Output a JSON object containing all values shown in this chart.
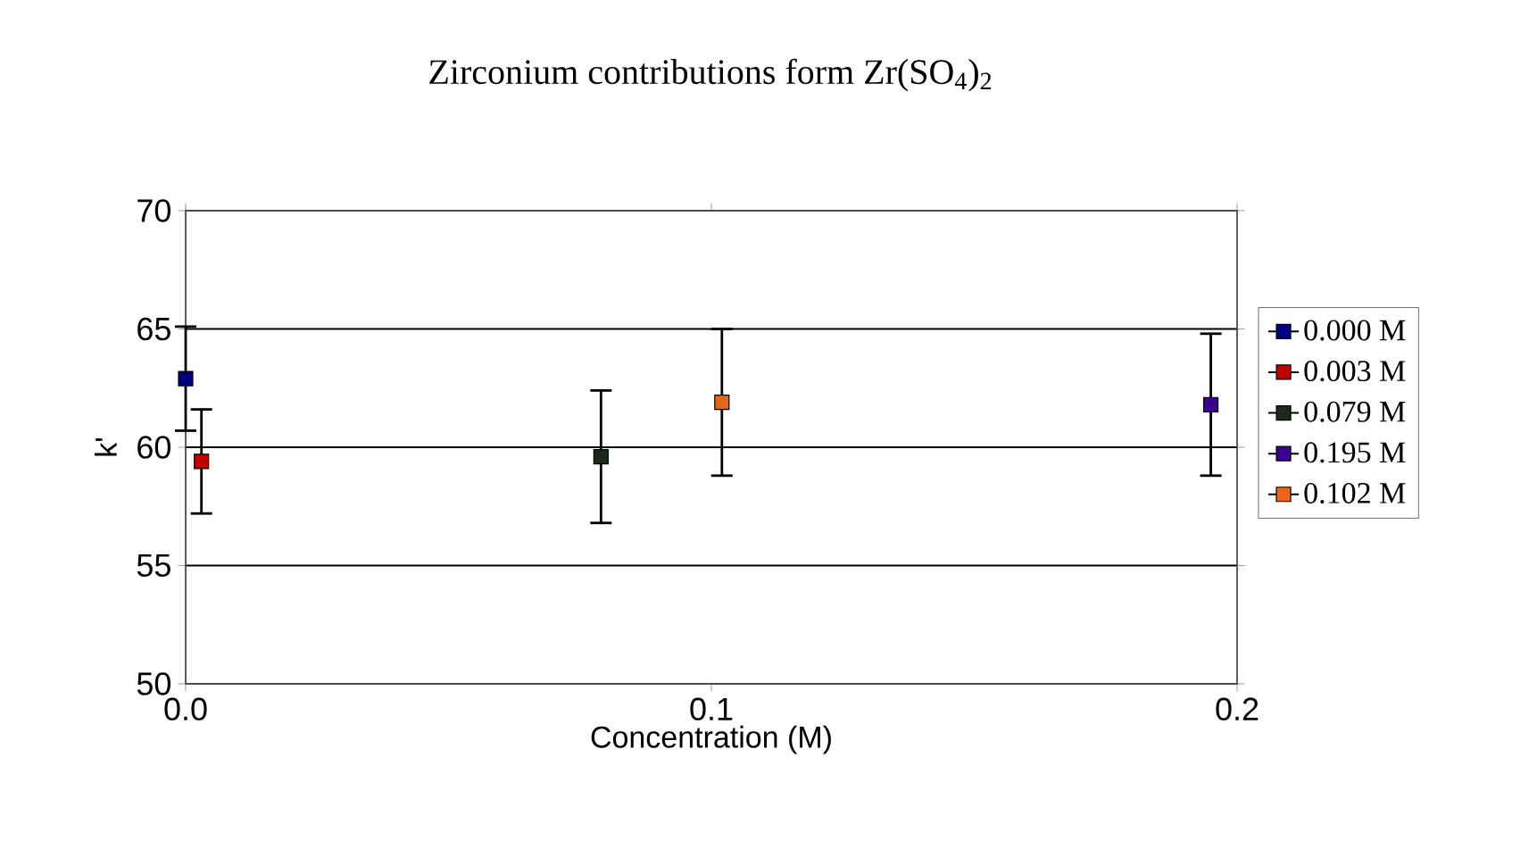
{
  "chart_data": {
    "type": "line",
    "title": "Zirconium contributions form Zr(SO$_{4}$)$_{2}$",
    "xlabel": "Concentration (M)",
    "ylabel": "k'",
    "xlim": [
      0,
      0.2
    ],
    "ylim": [
      50,
      70
    ],
    "xticks": [
      {
        "value": 0,
        "label": "0.0"
      },
      {
        "value": 0.1,
        "label": "0.1"
      },
      {
        "value": 0.2,
        "label": "0.2"
      }
    ],
    "yticks": [
      50,
      55,
      60,
      65,
      70
    ],
    "grid": "y",
    "legend": "right",
    "marker": "square",
    "series": [
      {
        "name": "0.000 M",
        "color": "#000080",
        "x": [
          0.0
        ],
        "values": [
          62.9
        ],
        "errors": [
          2.2
        ]
      },
      {
        "name": "0.003 M",
        "color": "#c00000",
        "x": [
          0.003
        ],
        "values": [
          59.4
        ],
        "errors": [
          2.2
        ]
      },
      {
        "name": "0.079 M",
        "color": "#1a2a1a",
        "x": [
          0.079
        ],
        "values": [
          59.6
        ],
        "errors": [
          2.8
        ]
      },
      {
        "name": "0.195 M",
        "color": "#3b0090",
        "x": [
          0.195
        ],
        "values": [
          61.8
        ],
        "errors": [
          3.0
        ]
      },
      {
        "name": "0.102 M",
        "color": "#e8661a",
        "x": [
          0.102
        ],
        "values": [
          61.9
        ],
        "errors": [
          3.1
        ]
      }
    ]
  }
}
